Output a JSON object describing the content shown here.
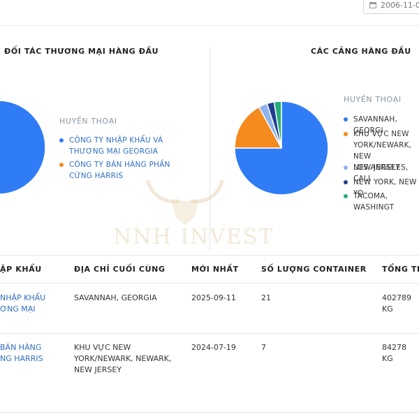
{
  "header": {
    "date_value": "2006-11-0"
  },
  "left_panel": {
    "title": "ĐỐI TÁC THƯƠNG MẠI HÀNG ĐẦU",
    "legend_title": "HUYỀN THOẠI",
    "legend": [
      {
        "label": "CÔNG TY NHẬP KHẨU VÀ\nTHƯƠNG MẠI GEORGIA",
        "color": "#2f7cf6"
      },
      {
        "label": "CÔNG TY BÁN HÀNG PHẦN\nCỨNG HARRIS",
        "color": "#f58a1f"
      }
    ]
  },
  "right_panel": {
    "title": "CÁC CẢNG HÀNG ĐẦU",
    "legend_title": "HUYỀN THOẠI",
    "legend": [
      {
        "label": "SAVANNAH, GEORGI",
        "color": "#2f7cf6"
      },
      {
        "label": "KHU VỰC NEW\nYORK/NEWARK, NEW\nNEW JERSEY",
        "color": "#f58a1f"
      },
      {
        "label": "LOS ANGELES, CALI",
        "color": "#8fb4ec"
      },
      {
        "label": "NEW YORK, NEW YO",
        "color": "#1f3f8f"
      },
      {
        "label": "TACOMA, WASHINGT",
        "color": "#27ae7a"
      }
    ]
  },
  "chart_data": [
    {
      "type": "pie",
      "title": "ĐỐI TÁC THƯƠNG MẠI HÀNG ĐẦU",
      "categories": [
        "CÔNG TY NHẬP KHẨU VÀ THƯƠNG MẠI GEORGIA",
        "CÔNG TY BÁN HÀNG PHẦN CỨNG HARRIS"
      ],
      "values": [
        100,
        0
      ],
      "colors": [
        "#2f7cf6",
        "#f58a1f"
      ],
      "legend_position": "right"
    },
    {
      "type": "pie",
      "title": "CÁC CẢNG HÀNG ĐẦU",
      "categories": [
        "SAVANNAH, GEORGI",
        "KHU VỰC NEW YORK/NEWARK, NEW NEW JERSEY",
        "LOS ANGELES, CALI",
        "NEW YORK, NEW YO",
        "TACOMA, WASHINGT"
      ],
      "values": [
        75,
        17,
        3,
        2.5,
        2.5
      ],
      "colors": [
        "#2f7cf6",
        "#f58a1f",
        "#8fb4ec",
        "#1f3f8f",
        "#27ae7a"
      ],
      "legend_position": "right"
    }
  ],
  "watermark": {
    "text": "NNH INVEST"
  },
  "table": {
    "columns": [
      "ẬP KHẨU",
      "ĐỊA CHỈ CUỐI CÙNG",
      "MỚI NHẤT",
      "SỐ LƯỢNG CONTAINER",
      "TỔNG TRO"
    ],
    "rows": [
      {
        "importer": "NHẬP KHẨU\nƠNG MẠI",
        "address": "SAVANNAH, GEORGIA",
        "latest": "2025-09-11",
        "containers": "21",
        "total": "402789 KG"
      },
      {
        "importer": "BÁN HÀNG\nNG HARRIS",
        "address": "KHU VỰC NEW\nYORK/NEWARK, NEWARK,\nNEW JERSEY",
        "latest": "2024-07-19",
        "containers": "7",
        "total": "84278 KG"
      }
    ]
  }
}
